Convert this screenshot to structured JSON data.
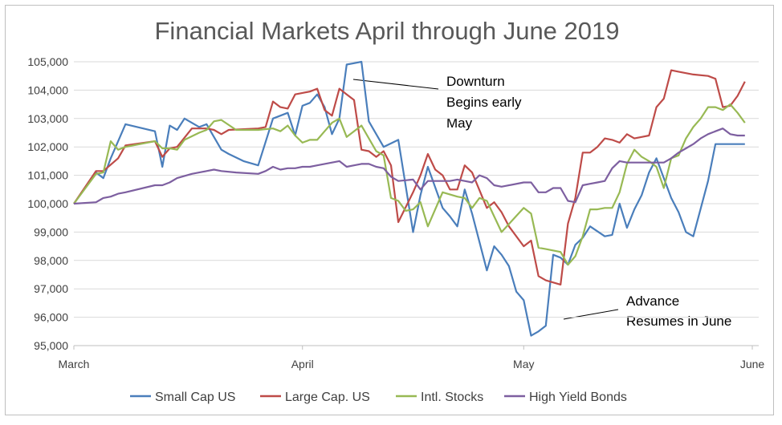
{
  "chart_data": {
    "type": "line",
    "title": "Financial Markets April through June 2019",
    "xlabel": "",
    "ylabel": "",
    "ylim": [
      95000,
      105000
    ],
    "yticks": [
      95000,
      96000,
      97000,
      98000,
      99000,
      100000,
      101000,
      102000,
      103000,
      104000,
      105000
    ],
    "ytick_labels": [
      "95,000",
      "96,000",
      "97,000",
      "98,000",
      "99,000",
      "100,000",
      "101,000",
      "102,000",
      "103,000",
      "104,000",
      "105,000"
    ],
    "xlim": [
      0,
      91
    ],
    "x_ticks": [
      {
        "label": "March",
        "x": 0
      },
      {
        "label": "April",
        "x": 31
      },
      {
        "label": "May",
        "x": 61
      },
      {
        "label": "June",
        "x": 92
      }
    ],
    "grid": "horizontal",
    "legend_position": "bottom",
    "colors": {
      "small_cap": "#4a7ebb",
      "large_cap": "#be4b48",
      "intl": "#98b954",
      "high_yield": "#7d5fa0"
    },
    "series": [
      {
        "name": "Small Cap US",
        "color": "#4a7ebb",
        "x": [
          0,
          3,
          4,
          5,
          7,
          11,
          12,
          13,
          14,
          15,
          17,
          18,
          20,
          21,
          23,
          25,
          27,
          29,
          30,
          31,
          32,
          33,
          34,
          35,
          36,
          37,
          38,
          39,
          40,
          42,
          44,
          46,
          47,
          48,
          50,
          51,
          52,
          53,
          54,
          56,
          57,
          58,
          59,
          60,
          61,
          62,
          63,
          64,
          65,
          66,
          67,
          68,
          69,
          70,
          72,
          73,
          74,
          75,
          76,
          77,
          78,
          79,
          80,
          81,
          82,
          83,
          84,
          86,
          87,
          88,
          89,
          90,
          91
        ],
        "y": [
          100000,
          101100,
          100900,
          101600,
          102800,
          102550,
          101300,
          102750,
          102600,
          103000,
          102700,
          102800,
          101900,
          101750,
          101500,
          101350,
          103000,
          103200,
          102400,
          103450,
          103550,
          103850,
          103400,
          102450,
          103000,
          104900,
          104950,
          105000,
          102900,
          102000,
          102250,
          99000,
          100300,
          101300,
          99850,
          99550,
          99200,
          100500,
          99650,
          97650,
          98500,
          98200,
          97800,
          96900,
          96600,
          95350,
          95500,
          95700,
          98200,
          98100,
          97850,
          98550,
          98800,
          99200,
          98850,
          98900,
          100000,
          99150,
          99800,
          100300,
          101100,
          101600,
          100900,
          100200,
          99700,
          99000,
          98850,
          100800,
          102100,
          102100,
          102100,
          102100,
          102100
        ]
      },
      {
        "name": "Large Cap. US",
        "color": "#be4b48",
        "x": [
          0,
          3,
          4,
          6,
          7,
          11,
          12,
          13,
          14,
          16,
          18,
          19,
          20,
          21,
          25,
          26,
          27,
          28,
          29,
          30,
          31,
          32,
          33,
          34,
          35,
          36,
          37,
          38,
          39,
          40,
          41,
          42,
          43,
          44,
          46,
          47,
          48,
          49,
          50,
          51,
          52,
          53,
          54,
          56,
          57,
          58,
          59,
          61,
          62,
          63,
          64,
          66,
          67,
          68,
          69,
          70,
          71,
          72,
          73,
          74,
          75,
          76,
          77,
          78,
          79,
          80,
          81,
          82,
          84,
          86,
          87,
          88,
          89,
          90,
          91
        ],
        "y": [
          100000,
          101150,
          101150,
          101600,
          102050,
          102200,
          101650,
          101950,
          102000,
          102650,
          102650,
          102600,
          102450,
          102600,
          102650,
          102700,
          103600,
          103400,
          103350,
          103850,
          103900,
          103950,
          104050,
          103300,
          103100,
          104050,
          103850,
          103650,
          101900,
          101850,
          101650,
          101850,
          101350,
          99350,
          100400,
          101000,
          101750,
          101200,
          101000,
          100500,
          100500,
          101350,
          101100,
          99850,
          100050,
          99700,
          99200,
          98500,
          98700,
          97450,
          97300,
          97150,
          99300,
          100200,
          101800,
          101800,
          102000,
          102300,
          102250,
          102150,
          102450,
          102300,
          102350,
          102400,
          103400,
          103700,
          104700,
          104650,
          104550,
          104500,
          104400,
          103400,
          103450,
          103800,
          104300
        ]
      },
      {
        "name": "Intl. Stocks",
        "color": "#98b954",
        "x": [
          0,
          3,
          4,
          5,
          6,
          7,
          11,
          12,
          13,
          14,
          15,
          17,
          18,
          19,
          20,
          22,
          25,
          27,
          28,
          29,
          30,
          31,
          32,
          33,
          34,
          35,
          36,
          37,
          39,
          41,
          42,
          43,
          44,
          45,
          46,
          47,
          48,
          50,
          52,
          53,
          54,
          55,
          56,
          57,
          58,
          61,
          62,
          63,
          64,
          66,
          67,
          68,
          69,
          70,
          71,
          72,
          73,
          74,
          75,
          76,
          77,
          78,
          79,
          80,
          81,
          82,
          83,
          84,
          85,
          86,
          87,
          88,
          89,
          90,
          91
        ],
        "y": [
          100000,
          101050,
          101100,
          102200,
          101900,
          102000,
          102200,
          101950,
          101950,
          101900,
          102250,
          102500,
          102600,
          102900,
          102950,
          102600,
          102600,
          102650,
          102550,
          102750,
          102400,
          102150,
          102250,
          102250,
          102550,
          102850,
          103000,
          102350,
          102750,
          101850,
          101700,
          100200,
          100100,
          99750,
          99800,
          100050,
          99200,
          100400,
          100250,
          100200,
          99850,
          100200,
          100100,
          99550,
          99000,
          99850,
          99650,
          98450,
          98400,
          98300,
          97850,
          98150,
          98850,
          99800,
          99800,
          99850,
          99850,
          100400,
          101400,
          101900,
          101650,
          101500,
          101300,
          100550,
          101600,
          101700,
          102300,
          102700,
          103000,
          103400,
          103400,
          103300,
          103500,
          103200,
          102850
        ]
      },
      {
        "name": "High Yield Bonds",
        "color": "#7d5fa0",
        "x": [
          0,
          3,
          4,
          5,
          6,
          7,
          11,
          12,
          13,
          14,
          16,
          17,
          18,
          19,
          20,
          22,
          25,
          26,
          27,
          28,
          29,
          30,
          31,
          32,
          33,
          34,
          35,
          36,
          37,
          38,
          39,
          40,
          41,
          42,
          43,
          44,
          46,
          47,
          48,
          50,
          51,
          52,
          53,
          54,
          55,
          56,
          57,
          58,
          61,
          62,
          63,
          64,
          65,
          66,
          67,
          68,
          69,
          70,
          71,
          72,
          73,
          74,
          75,
          76,
          77,
          78,
          79,
          80,
          81,
          82,
          83,
          84,
          85,
          86,
          87,
          88,
          89,
          90,
          91
        ],
        "y": [
          100000,
          100050,
          100200,
          100250,
          100350,
          100400,
          100650,
          100650,
          100750,
          100900,
          101050,
          101100,
          101150,
          101200,
          101150,
          101100,
          101050,
          101150,
          101300,
          101200,
          101250,
          101250,
          101300,
          101300,
          101350,
          101400,
          101450,
          101500,
          101300,
          101350,
          101400,
          101400,
          101300,
          101250,
          100950,
          100800,
          100850,
          100500,
          100800,
          100800,
          100800,
          100850,
          100800,
          100750,
          101000,
          100900,
          100650,
          100600,
          100750,
          100750,
          100400,
          100400,
          100550,
          100550,
          100100,
          100050,
          100650,
          100700,
          100750,
          100800,
          101250,
          101500,
          101450,
          101450,
          101450,
          101450,
          101450,
          101450,
          101600,
          101800,
          101950,
          102100,
          102300,
          102450,
          102550,
          102650,
          102450,
          102400,
          102400
        ]
      }
    ]
  }
}
